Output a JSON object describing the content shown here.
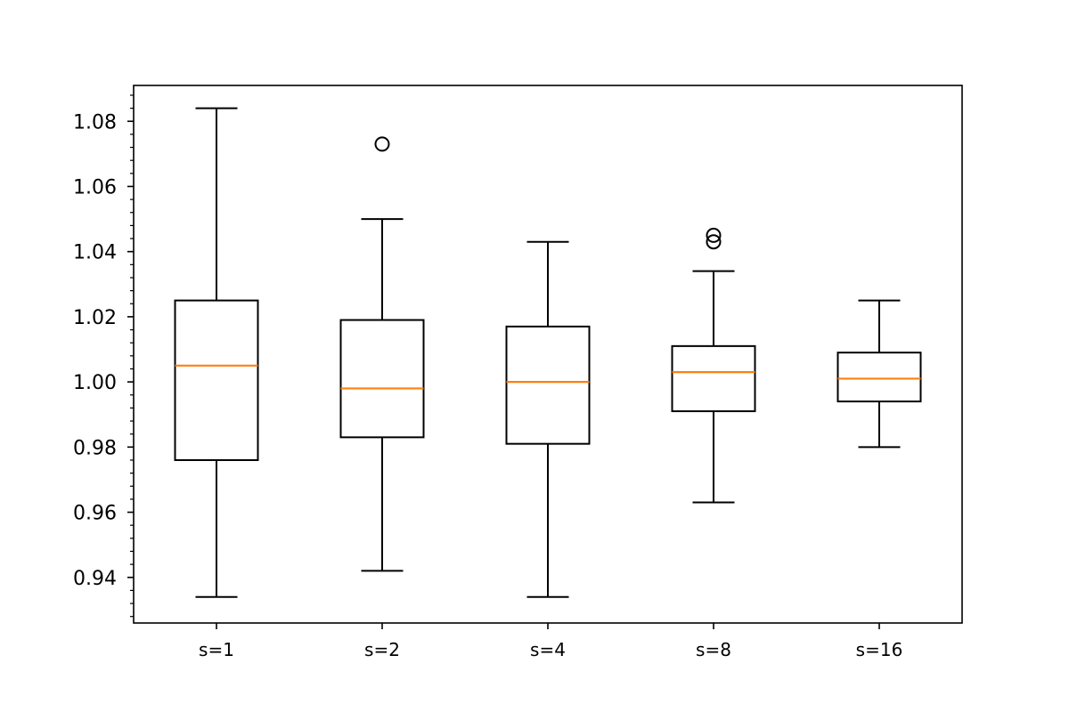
{
  "chart_data": {
    "type": "boxplot",
    "title": "",
    "xlabel": "",
    "ylabel": "",
    "categories": [
      "s=1",
      "s=2",
      "s=4",
      "s=8",
      "s=16"
    ],
    "ylim": [
      0.926,
      1.091
    ],
    "yticks": [
      0.94,
      0.96,
      0.98,
      1.0,
      1.02,
      1.04,
      1.06,
      1.08
    ],
    "ytick_labels": [
      "0.94",
      "0.96",
      "0.98",
      "1.00",
      "1.02",
      "1.04",
      "1.06",
      "1.08"
    ],
    "minor_ticks": true,
    "grid": false,
    "boxes": [
      {
        "name": "s=1",
        "whislo": 0.934,
        "q1": 0.976,
        "med": 1.005,
        "q3": 1.025,
        "whishi": 1.084,
        "fliers": []
      },
      {
        "name": "s=2",
        "whislo": 0.942,
        "q1": 0.983,
        "med": 0.998,
        "q3": 1.019,
        "whishi": 1.05,
        "fliers": [
          1.073
        ]
      },
      {
        "name": "s=4",
        "whislo": 0.934,
        "q1": 0.981,
        "med": 1.0,
        "q3": 1.017,
        "whishi": 1.043,
        "fliers": []
      },
      {
        "name": "s=8",
        "whislo": 0.963,
        "q1": 0.991,
        "med": 1.003,
        "q3": 1.011,
        "whishi": 1.034,
        "fliers": [
          1.043,
          1.045
        ]
      },
      {
        "name": "s=16",
        "whislo": 0.98,
        "q1": 0.994,
        "med": 1.001,
        "q3": 1.009,
        "whishi": 1.025,
        "fliers": []
      }
    ],
    "colors": {
      "box": "#000000",
      "median": "#ff7f0e",
      "axes": "#000000",
      "background": "#ffffff"
    }
  }
}
